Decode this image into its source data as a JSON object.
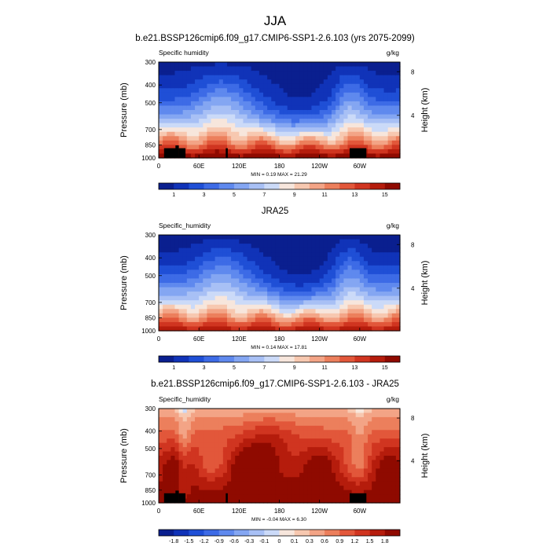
{
  "figure": {
    "title": "JJA"
  },
  "chart_data": [
    {
      "type": "heatmap",
      "title": "b.e21.BSSP126cmip6.f09_g17.CMIP6-SSP1-2.6.103 (yrs 2075-2099)",
      "left_label": "Specific humidity",
      "right_label": "g/kg",
      "ylabel": "Pressure (mb)",
      "y2label": "Height (km)",
      "x_ticks": [
        "0",
        "60E",
        "120E",
        "180",
        "120W",
        "60W"
      ],
      "x_tick_lon": [
        0,
        60,
        120,
        180,
        240,
        300
      ],
      "xlim": [
        0,
        360
      ],
      "y_ticks": [
        300,
        400,
        500,
        700,
        850,
        1000
      ],
      "ylim": [
        1000,
        300
      ],
      "y_scale": "log",
      "height_ticks": [
        8,
        4
      ],
      "stats": "MIN =   0.19  MAX =  21.29",
      "colorbar_labels": [
        "1",
        "3",
        "5",
        "7",
        "9",
        "11",
        "13",
        "15"
      ],
      "levels": [
        0,
        1,
        2,
        3,
        4,
        5,
        6,
        7,
        8,
        9,
        10,
        11,
        12,
        13,
        14,
        15,
        16
      ],
      "min": 0.19,
      "max": 21.29
    },
    {
      "type": "heatmap",
      "title": "JRA25",
      "left_label": "Specific_humidity",
      "right_label": "g/kg",
      "ylabel": "Pressure (mb)",
      "y2label": "Height (km)",
      "x_ticks": [
        "0",
        "60E",
        "120E",
        "180",
        "120W",
        "60W"
      ],
      "x_tick_lon": [
        0,
        60,
        120,
        180,
        240,
        300
      ],
      "xlim": [
        0,
        360
      ],
      "y_ticks": [
        300,
        400,
        500,
        700,
        850,
        1000
      ],
      "ylim": [
        1000,
        300
      ],
      "y_scale": "log",
      "height_ticks": [
        8,
        4
      ],
      "stats": "MIN =   0.14  MAX =  17.81",
      "colorbar_labels": [
        "1",
        "3",
        "5",
        "7",
        "9",
        "11",
        "13",
        "15"
      ],
      "levels": [
        0,
        1,
        2,
        3,
        4,
        5,
        6,
        7,
        8,
        9,
        10,
        11,
        12,
        13,
        14,
        15,
        16
      ],
      "min": 0.14,
      "max": 17.81
    },
    {
      "type": "heatmap",
      "title": "b.e21.BSSP126cmip6.f09_g17.CMIP6-SSP1-2.6.103 - JRA25",
      "left_label": "Specific_humidity",
      "right_label": "g/kg",
      "ylabel": "Pressure (mb)",
      "y2label": "Height (km)",
      "x_ticks": [
        "0",
        "60E",
        "120E",
        "180",
        "120W",
        "60W"
      ],
      "x_tick_lon": [
        0,
        60,
        120,
        180,
        240,
        300
      ],
      "xlim": [
        0,
        360
      ],
      "y_ticks": [
        300,
        400,
        500,
        700,
        850,
        1000
      ],
      "ylim": [
        1000,
        300
      ],
      "y_scale": "log",
      "height_ticks": [
        8,
        4
      ],
      "stats": "MIN =  -0.04  MAX =   6.30",
      "colorbar_labels": [
        "-1.8",
        "-1.5",
        "-1.2",
        "-0.9",
        "-0.6",
        "-0.3",
        "-0.1",
        "0",
        "0.1",
        "0.3",
        "0.6",
        "0.9",
        "1.2",
        "1.5",
        "1.8"
      ],
      "levels": [
        -2.1,
        -1.8,
        -1.5,
        -1.2,
        -0.9,
        -0.6,
        -0.3,
        -0.1,
        0,
        0.1,
        0.3,
        0.6,
        0.9,
        1.2,
        1.5,
        1.8,
        2.1
      ],
      "min": -0.04,
      "max": 6.3
    }
  ],
  "colormap": [
    "#0a1f8f",
    "#1033b8",
    "#1f4fd6",
    "#3d6be6",
    "#5f89ee",
    "#84a6f2",
    "#a8c0f5",
    "#cbdaf8",
    "#f7e6dc",
    "#f7c8b0",
    "#f3a486",
    "#ec7f5c",
    "#e2573a",
    "#d03520",
    "#b51c0c",
    "#8f0a00"
  ]
}
